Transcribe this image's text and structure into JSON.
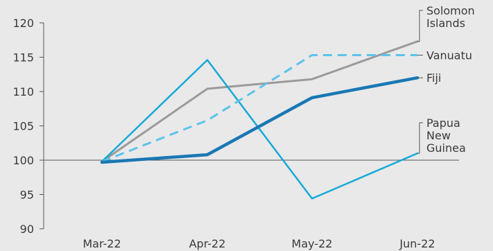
{
  "chart_data": {
    "type": "line",
    "title": "",
    "xlabel": "",
    "ylabel": "",
    "categories": [
      "Mar-22",
      "Apr-22",
      "May-22",
      "Jun-22"
    ],
    "ylim": [
      90,
      120
    ],
    "yticks": [
      90,
      95,
      100,
      105,
      110,
      115,
      120
    ],
    "reference_line": 100,
    "grid": false,
    "legend": "direct labels at line ends (right)",
    "series": [
      {
        "name": "Solomon Islands",
        "label_lines": [
          "Solomon",
          "Islands"
        ],
        "values": [
          99.8,
          110.4,
          111.8,
          117.3
        ],
        "color": "#9a9a9c",
        "style": "solid",
        "width": 3
      },
      {
        "name": "Vanuatu",
        "label_lines": [
          "Vanuatu"
        ],
        "values": [
          99.8,
          105.8,
          115.3,
          115.3
        ],
        "color": "#5cc3ea",
        "style": "dashed",
        "width": 3
      },
      {
        "name": "Fiji",
        "label_lines": [
          "Fiji"
        ],
        "values": [
          99.7,
          100.8,
          109.1,
          112.0
        ],
        "color": "#1a78b4",
        "style": "solid",
        "width": 4.5
      },
      {
        "name": "Papua New Guinea",
        "label_lines": [
          "Papua",
          "New",
          "Guinea"
        ],
        "values": [
          99.8,
          114.6,
          94.4,
          101.0
        ],
        "color": "#15a9d6",
        "style": "solid",
        "width": 2.5
      }
    ]
  }
}
